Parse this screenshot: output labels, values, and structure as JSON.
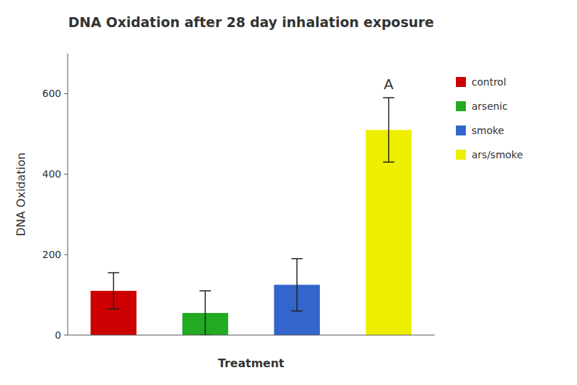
{
  "chart_data": {
    "type": "bar",
    "title": "DNA Oxidation after 28 day inhalation exposure",
    "xlabel": "Treatment",
    "ylabel": "DNA Oxidation",
    "categories": [
      "control",
      "arsenic",
      "smoke",
      "ars/smoke"
    ],
    "values": [
      110,
      55,
      125,
      510
    ],
    "errors": [
      45,
      55,
      65,
      80
    ],
    "colors": [
      "#cc0000",
      "#22aa22",
      "#3366cc",
      "#eeee00"
    ],
    "annotations": [
      {
        "text": "A",
        "category": "ars/smoke"
      }
    ],
    "ylim": [
      0,
      700
    ],
    "yticks": [
      0,
      200,
      400,
      600
    ],
    "grid": false,
    "legend": "right",
    "tick_labels": "y"
  }
}
